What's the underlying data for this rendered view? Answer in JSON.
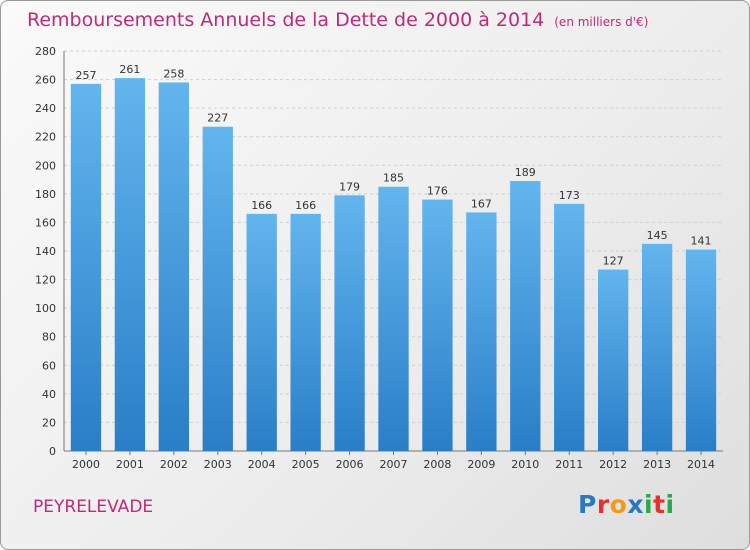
{
  "header": {
    "title": "Remboursements Annuels de la Dette de 2000 à 2014",
    "unit": "(en milliers d'€)"
  },
  "footer": {
    "place": "PEYRELEVADE",
    "logo_letters": [
      "P",
      "r",
      "o",
      "x",
      "i",
      "t",
      "i"
    ],
    "logo_colors": [
      "#2a78c2",
      "#e5322d",
      "#f39c12",
      "#2a78c2",
      "#2aa84a",
      "#e5322d",
      "#2aa84a"
    ]
  },
  "chart_data": {
    "type": "bar",
    "title": "Remboursements Annuels de la Dette de 2000 à 2014",
    "categories": [
      "2000",
      "2001",
      "2002",
      "2003",
      "2004",
      "2005",
      "2006",
      "2007",
      "2008",
      "2009",
      "2010",
      "2011",
      "2012",
      "2013",
      "2014"
    ],
    "values": [
      257,
      261,
      258,
      227,
      166,
      166,
      179,
      185,
      176,
      167,
      189,
      173,
      127,
      145,
      141
    ],
    "ylim": [
      0,
      280
    ],
    "yticks": [
      0,
      20,
      40,
      60,
      80,
      100,
      120,
      140,
      160,
      180,
      200,
      220,
      240,
      260,
      280
    ],
    "grid": true,
    "bar_color_top": "#63b5ee",
    "bar_color_bottom": "#2a7ec7"
  }
}
